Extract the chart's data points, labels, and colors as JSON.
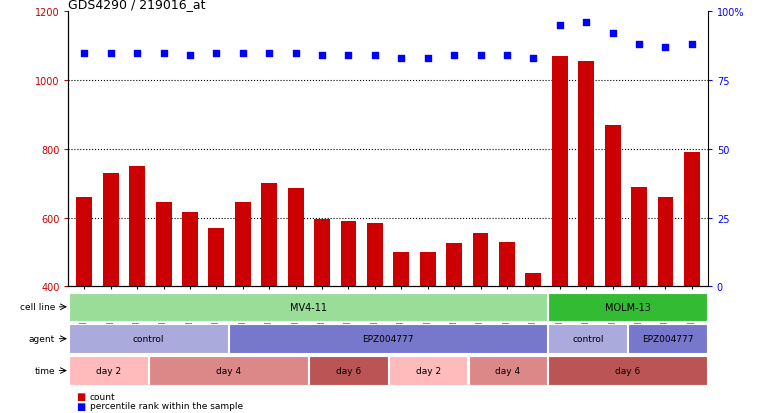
{
  "title": "GDS4290 / 219016_at",
  "samples": [
    "GSM739151",
    "GSM739152",
    "GSM739153",
    "GSM739157",
    "GSM739158",
    "GSM739159",
    "GSM739163",
    "GSM739164",
    "GSM739165",
    "GSM739148",
    "GSM739149",
    "GSM739150",
    "GSM739154",
    "GSM739155",
    "GSM739156",
    "GSM739160",
    "GSM739161",
    "GSM739162",
    "GSM739169",
    "GSM739170",
    "GSM739171",
    "GSM739166",
    "GSM739167",
    "GSM739168"
  ],
  "counts": [
    660,
    730,
    750,
    645,
    615,
    570,
    645,
    700,
    685,
    595,
    590,
    585,
    500,
    500,
    525,
    555,
    530,
    440,
    1070,
    1055,
    870,
    690,
    660,
    790
  ],
  "percentiles": [
    85,
    85,
    85,
    85,
    84,
    85,
    85,
    85,
    85,
    84,
    84,
    84,
    83,
    83,
    84,
    84,
    84,
    83,
    95,
    96,
    92,
    88,
    87,
    88
  ],
  "ylim_left": [
    400,
    1200
  ],
  "ylim_right": [
    0,
    100
  ],
  "yticks_left": [
    400,
    600,
    800,
    1000,
    1200
  ],
  "yticks_right": [
    0,
    25,
    50,
    75,
    100
  ],
  "bar_color": "#cc0000",
  "dot_color": "#0000ff",
  "grid_values": [
    600,
    800,
    1000
  ],
  "cell_line_spans": [
    {
      "label": "MV4-11",
      "start": 0,
      "end": 18,
      "color": "#99dd99"
    },
    {
      "label": "MOLM-13",
      "start": 18,
      "end": 24,
      "color": "#33bb33"
    }
  ],
  "agent_spans": [
    {
      "label": "control",
      "start": 0,
      "end": 6,
      "color": "#aaaadd"
    },
    {
      "label": "EPZ004777",
      "start": 6,
      "end": 18,
      "color": "#7777cc"
    },
    {
      "label": "control",
      "start": 18,
      "end": 21,
      "color": "#aaaadd"
    },
    {
      "label": "EPZ004777",
      "start": 21,
      "end": 24,
      "color": "#7777cc"
    }
  ],
  "time_spans": [
    {
      "label": "day 2",
      "start": 0,
      "end": 3,
      "color": "#ffbbbb"
    },
    {
      "label": "day 4",
      "start": 3,
      "end": 9,
      "color": "#dd8888"
    },
    {
      "label": "day 6",
      "start": 9,
      "end": 12,
      "color": "#bb5555"
    },
    {
      "label": "day 2",
      "start": 12,
      "end": 15,
      "color": "#ffbbbb"
    },
    {
      "label": "day 4",
      "start": 15,
      "end": 18,
      "color": "#dd8888"
    },
    {
      "label": "day 6",
      "start": 18,
      "end": 24,
      "color": "#bb5555"
    }
  ],
  "legend_items": [
    {
      "label": "count",
      "color": "#cc0000"
    },
    {
      "label": "percentile rank within the sample",
      "color": "#0000ff"
    }
  ],
  "background_color": "#ffffff"
}
